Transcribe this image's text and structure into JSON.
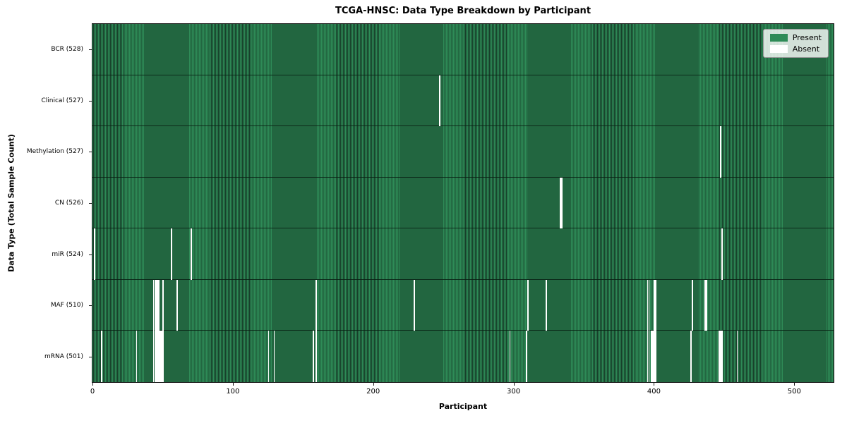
{
  "chart_data": {
    "type": "heatmap",
    "title": "TCGA-HNSC: Data Type Breakdown by Participant",
    "xlabel": "Participant",
    "ylabel": "Data Type (Total Sample Count)",
    "x_ticks": [
      0,
      100,
      200,
      300,
      400,
      500
    ],
    "xlim": [
      0,
      528
    ],
    "participants_total": 528,
    "grid": false,
    "legend": {
      "position": "upper right",
      "entries": [
        {
          "label": "Present",
          "color": "#2e8b57"
        },
        {
          "label": "Absent",
          "color": "#ffffff"
        }
      ]
    },
    "colors": {
      "present": "#2e8b57",
      "bar_edge": "#17402a",
      "absent": "#ffffff",
      "row_separator": "#14271c",
      "spine": "#1a1a1a"
    },
    "rows": [
      {
        "label": "BCR (528)",
        "data_type": "BCR",
        "present_count": 528,
        "absent_count": 0,
        "absent_participants": []
      },
      {
        "label": "Clinical (527)",
        "data_type": "Clinical",
        "present_count": 527,
        "absent_count": 1,
        "absent_participants": [
          247
        ]
      },
      {
        "label": "Methylation (527)",
        "data_type": "Methylation",
        "present_count": 527,
        "absent_count": 1,
        "absent_participants": [
          447
        ]
      },
      {
        "label": "CN (526)",
        "data_type": "CN",
        "present_count": 526,
        "absent_count": 2,
        "absent_participants": [
          333,
          334
        ]
      },
      {
        "label": "miR (524)",
        "data_type": "miR",
        "present_count": 524,
        "absent_count": 4,
        "absent_participants": [
          1,
          56,
          70,
          448
        ]
      },
      {
        "label": "MAF (510)",
        "data_type": "MAF",
        "present_count": 510,
        "absent_count": 18,
        "absent_participants": [
          43,
          44,
          45,
          46,
          47,
          50,
          60,
          159,
          229,
          310,
          323,
          395,
          396,
          400,
          401,
          427,
          436,
          437
        ]
      },
      {
        "label": "mRNA (501)",
        "data_type": "mRNA",
        "present_count": 501,
        "absent_count": 27,
        "absent_participants": [
          6,
          31,
          43,
          44,
          45,
          46,
          47,
          48,
          49,
          50,
          125,
          129,
          157,
          159,
          297,
          309,
          395,
          396,
          398,
          399,
          400,
          401,
          426,
          446,
          447,
          448,
          459
        ]
      }
    ]
  }
}
